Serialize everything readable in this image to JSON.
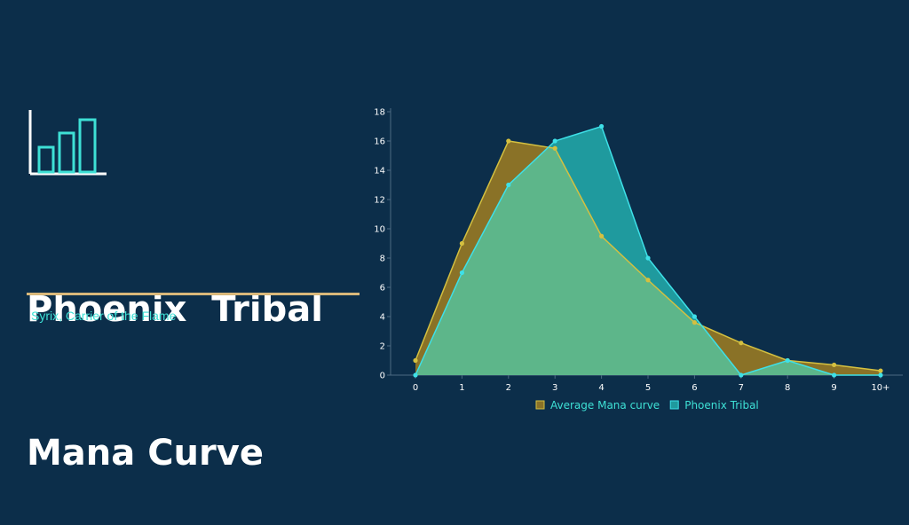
{
  "header": {
    "title_line1": "Phoenix  Tribal",
    "title_line2": "Mana Curve",
    "subtitle": "Syrix, Carrier of the Flame",
    "icon": "bar-chart-icon",
    "accent_color": "#3ee0d5",
    "divider_color": "#d9b87a"
  },
  "chart_data": {
    "type": "area",
    "categories": [
      "0",
      "1",
      "2",
      "3",
      "4",
      "5",
      "6",
      "7",
      "8",
      "9",
      "10+"
    ],
    "ylim": [
      0,
      18
    ],
    "yticks": [
      0,
      2,
      4,
      6,
      8,
      10,
      12,
      14,
      16,
      18
    ],
    "grid": false,
    "legend": "bottom",
    "series": [
      {
        "name": "Average Mana curve",
        "values": [
          1,
          9,
          16,
          15.5,
          9.5,
          6.5,
          3.6,
          2.2,
          1,
          0.7,
          0.3
        ],
        "fill": "#8a7227",
        "line": "#d4c040"
      },
      {
        "name": "Phoenix Tribal",
        "values": [
          0,
          7,
          13,
          16,
          17,
          8,
          4,
          0,
          1,
          0,
          0
        ],
        "fill": "#1f9a9e",
        "line": "#3ee0e8"
      }
    ],
    "overlap_fill": "#5db68a"
  }
}
